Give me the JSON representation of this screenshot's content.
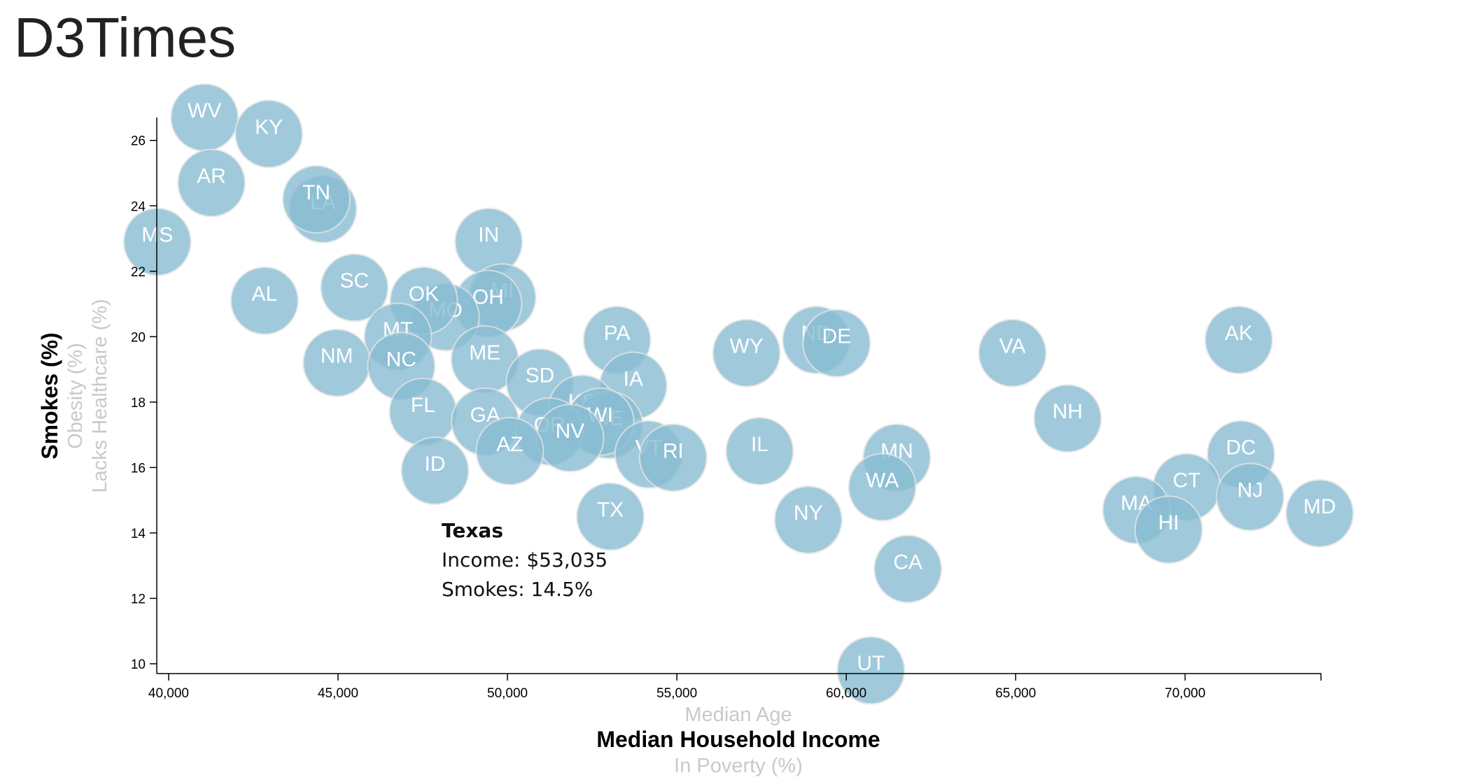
{
  "page": {
    "title": "D3Times"
  },
  "tooltip": {
    "state": "Texas",
    "line1": "Income: $53,035",
    "line2": "Smokes: 14.5%"
  },
  "colors": {
    "circle_fill": "#89bdd3",
    "circle_stroke": "#e3e3e3",
    "active_label": "#000000",
    "inactive_label": "#c9c9c9"
  },
  "axis_labels": {
    "x_top": "Median Age",
    "x_active": "Median Household Income",
    "x_bottom": "In Poverty (%)",
    "y_active": "Smokes (%)",
    "y_middle": "Obesity (%)",
    "y_outer": "Lacks Healthcare (%)"
  },
  "chart_data": {
    "type": "scatter",
    "xlabel": "Median Household Income",
    "ylabel": "Smokes (%)",
    "xlim": [
      39650,
      74000
    ],
    "ylim": [
      9.7,
      26.7
    ],
    "xticks": [
      40000,
      45000,
      50000,
      55000,
      60000,
      65000,
      70000
    ],
    "xtick_labels": [
      "40,000",
      "45,000",
      "50,000",
      "55,000",
      "60,000",
      "65,000",
      "70,000"
    ],
    "yticks": [
      10,
      12,
      14,
      16,
      18,
      20,
      22,
      24,
      26
    ],
    "ytick_labels": [
      "10",
      "12",
      "14",
      "16",
      "18",
      "20",
      "22",
      "24",
      "26"
    ],
    "points": [
      {
        "abbr": "WV",
        "x": 41059,
        "y": 26.7
      },
      {
        "abbr": "KY",
        "x": 42958,
        "y": 26.2
      },
      {
        "abbr": "AR",
        "x": 41264,
        "y": 24.7
      },
      {
        "abbr": "LA",
        "x": 44555,
        "y": 23.9
      },
      {
        "abbr": "TN",
        "x": 44361,
        "y": 24.2
      },
      {
        "abbr": "MS",
        "x": 39665,
        "y": 22.9
      },
      {
        "abbr": "IN",
        "x": 49446,
        "y": 22.9
      },
      {
        "abbr": "AL",
        "x": 42830,
        "y": 21.1
      },
      {
        "abbr": "SC",
        "x": 45483,
        "y": 21.5
      },
      {
        "abbr": "MI",
        "x": 49847,
        "y": 21.2
      },
      {
        "abbr": "OH",
        "x": 49429,
        "y": 21.0
      },
      {
        "abbr": "MO",
        "x": 48173,
        "y": 20.6
      },
      {
        "abbr": "OK",
        "x": 47529,
        "y": 21.1
      },
      {
        "abbr": "MT",
        "x": 46766,
        "y": 20.0
      },
      {
        "abbr": "PA",
        "x": 53234,
        "y": 19.9
      },
      {
        "abbr": "WY",
        "x": 57055,
        "y": 19.5
      },
      {
        "abbr": "ND",
        "x": 59114,
        "y": 19.9
      },
      {
        "abbr": "DE",
        "x": 59716,
        "y": 19.8
      },
      {
        "abbr": "VA",
        "x": 64902,
        "y": 19.5
      },
      {
        "abbr": "AK",
        "x": 71583,
        "y": 19.9
      },
      {
        "abbr": "NM",
        "x": 44963,
        "y": 19.2
      },
      {
        "abbr": "NC",
        "x": 46868,
        "y": 19.1
      },
      {
        "abbr": "ME",
        "x": 49331,
        "y": 19.3
      },
      {
        "abbr": "IA",
        "x": 53712,
        "y": 18.5
      },
      {
        "abbr": "SD",
        "x": 50957,
        "y": 18.6
      },
      {
        "abbr": "KS",
        "x": 52205,
        "y": 17.8
      },
      {
        "abbr": "NE",
        "x": 52997,
        "y": 17.3
      },
      {
        "abbr": "WI",
        "x": 52738,
        "y": 17.4
      },
      {
        "abbr": "NH",
        "x": 66532,
        "y": 17.5
      },
      {
        "abbr": "FL",
        "x": 47507,
        "y": 17.7
      },
      {
        "abbr": "GA",
        "x": 49342,
        "y": 17.4
      },
      {
        "abbr": "OR",
        "x": 51243,
        "y": 17.1
      },
      {
        "abbr": "NV",
        "x": 51847,
        "y": 16.9
      },
      {
        "abbr": "AZ",
        "x": 50068,
        "y": 16.5
      },
      {
        "abbr": "VT",
        "x": 54166,
        "y": 16.4
      },
      {
        "abbr": "RI",
        "x": 54891,
        "y": 16.3
      },
      {
        "abbr": "IL",
        "x": 57444,
        "y": 16.5
      },
      {
        "abbr": "MN",
        "x": 61492,
        "y": 16.3
      },
      {
        "abbr": "DC",
        "x": 71648,
        "y": 16.4
      },
      {
        "abbr": "CT",
        "x": 70048,
        "y": 15.4
      },
      {
        "abbr": "ID",
        "x": 47861,
        "y": 15.9
      },
      {
        "abbr": "WA",
        "x": 61062,
        "y": 15.4
      },
      {
        "abbr": "NJ",
        "x": 71919,
        "y": 15.1
      },
      {
        "abbr": "MA",
        "x": 68563,
        "y": 14.7
      },
      {
        "abbr": "HI",
        "x": 69515,
        "y": 14.1
      },
      {
        "abbr": "MD",
        "x": 73971,
        "y": 14.6
      },
      {
        "abbr": "TX",
        "x": 53035,
        "y": 14.5
      },
      {
        "abbr": "NY",
        "x": 58878,
        "y": 14.4
      },
      {
        "abbr": "CA",
        "x": 61818,
        "y": 12.9
      },
      {
        "abbr": "UT",
        "x": 60727,
        "y": 9.8
      }
    ]
  }
}
